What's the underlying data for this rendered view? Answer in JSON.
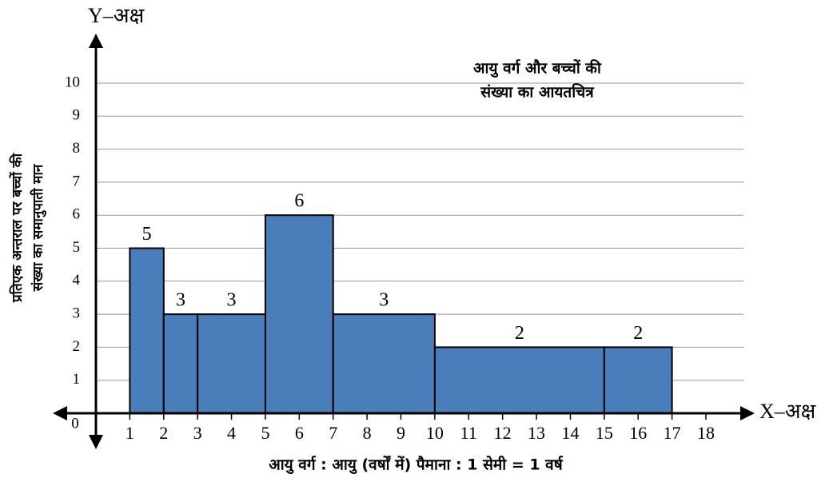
{
  "chart_data": {
    "type": "histogram",
    "title": [
      "आयु वर्ग और बच्चों की",
      "संख्या का आयतचित्र"
    ],
    "ylabel": [
      "प्रतिएक अन्तराल पर बच्चों की",
      "संख्या का समानुपाती मान"
    ],
    "xlabel": "आयु वर्ग : आयु (वर्षों में) पैमाना : 1 सेमी = 1 वर्ष",
    "x_axis_name": "X–अक्ष",
    "y_axis_name": "Y–अक्ष",
    "bins": [
      1,
      2,
      3,
      5,
      7,
      10,
      15,
      17
    ],
    "values": [
      5,
      3,
      3,
      6,
      3,
      2,
      2
    ],
    "color": "#4a7ebb",
    "xlim": [
      0,
      18
    ],
    "xticks": [
      0,
      1,
      2,
      3,
      4,
      5,
      6,
      7,
      8,
      9,
      10,
      11,
      12,
      13,
      14,
      15,
      16,
      17,
      18
    ],
    "ylim": [
      0,
      10
    ],
    "yticks": [
      1,
      2,
      3,
      4,
      5,
      6,
      7,
      8,
      9,
      10
    ],
    "grid": true
  }
}
